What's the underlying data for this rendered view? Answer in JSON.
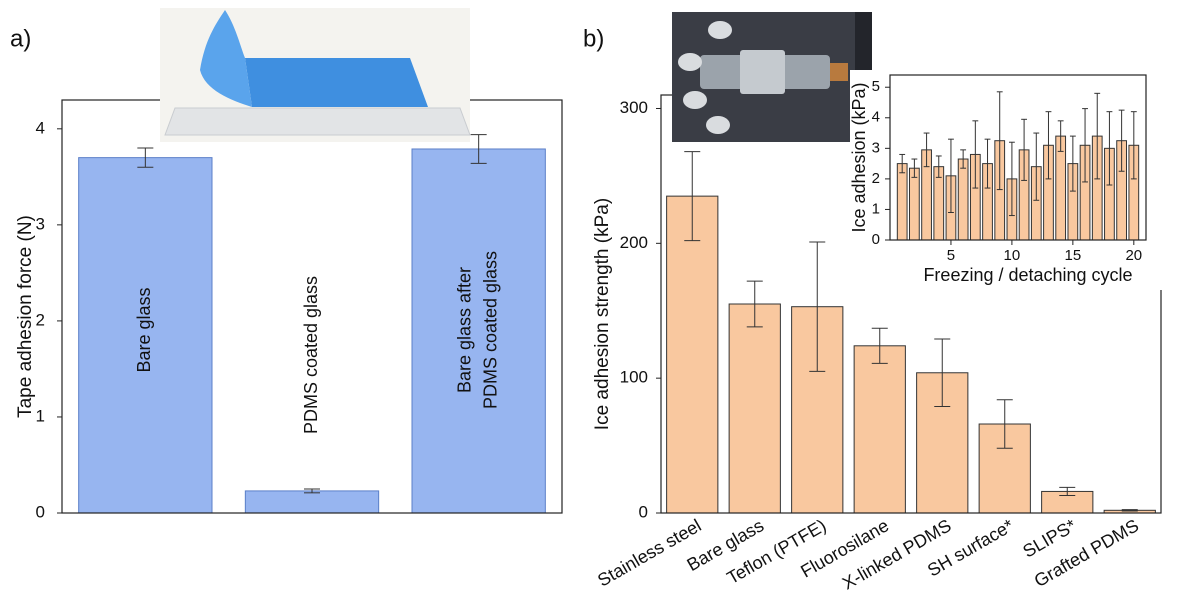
{
  "chart_data": [
    {
      "type": "bar",
      "label": "a)",
      "ylabel": "Tape adhesion force (N)",
      "categories": [
        "Bare glass",
        "PDMS coated glass",
        [
          "Bare glass after",
          "PDMS coated glass"
        ]
      ],
      "values": [
        3.7,
        0.23,
        3.79
      ],
      "errors": [
        0.1,
        0.02,
        0.15
      ],
      "color": "#97b5f0",
      "edge": "#5b7fc8",
      "ylim": [
        0,
        4.3
      ],
      "yticks": [
        0,
        1,
        2,
        3,
        4
      ]
    },
    {
      "type": "bar",
      "label": "b)",
      "ylabel": "Ice adhesion strength (kPa)",
      "categories": [
        "Stainless steel",
        "Bare glass",
        "Teflon (PTFE)",
        "Fluorosilane",
        "X-linked PDMS",
        "SH surface*",
        "SLIPS*",
        "Grafted PDMS"
      ],
      "values": [
        235,
        155,
        153,
        124,
        104,
        66,
        16,
        2
      ],
      "errors": [
        33,
        17,
        48,
        13,
        25,
        18,
        3,
        0.5
      ],
      "color": "#f9c89f",
      "edge": "#333333",
      "ylim": [
        0,
        310
      ],
      "yticks": [
        0,
        100,
        200,
        300
      ]
    },
    {
      "type": "xbar",
      "ylabel": "Ice adhesion (kPa)",
      "xlabel": "Freezing / detaching cycle",
      "x": [
        1,
        2,
        3,
        4,
        5,
        6,
        7,
        8,
        9,
        10,
        11,
        12,
        13,
        14,
        15,
        16,
        17,
        18,
        19,
        20
      ],
      "values": [
        2.5,
        2.35,
        2.95,
        2.4,
        2.1,
        2.65,
        2.8,
        2.5,
        3.25,
        2.0,
        2.95,
        2.4,
        3.1,
        3.4,
        2.5,
        3.1,
        3.4,
        3.0,
        3.25,
        3.1
      ],
      "errors": [
        0.3,
        0.3,
        0.55,
        0.35,
        1.2,
        0.3,
        1.1,
        0.8,
        1.6,
        1.2,
        1.0,
        1.1,
        1.1,
        0.5,
        0.9,
        1.2,
        1.4,
        1.2,
        1.0,
        1.1
      ],
      "color": "#f9c89f",
      "edge": "#333333",
      "xlim": [
        0,
        21
      ],
      "xticks": [
        5,
        10,
        15,
        20
      ],
      "ylim": [
        0,
        5.4
      ],
      "yticks": [
        0,
        1,
        2,
        3,
        4,
        5
      ]
    }
  ]
}
